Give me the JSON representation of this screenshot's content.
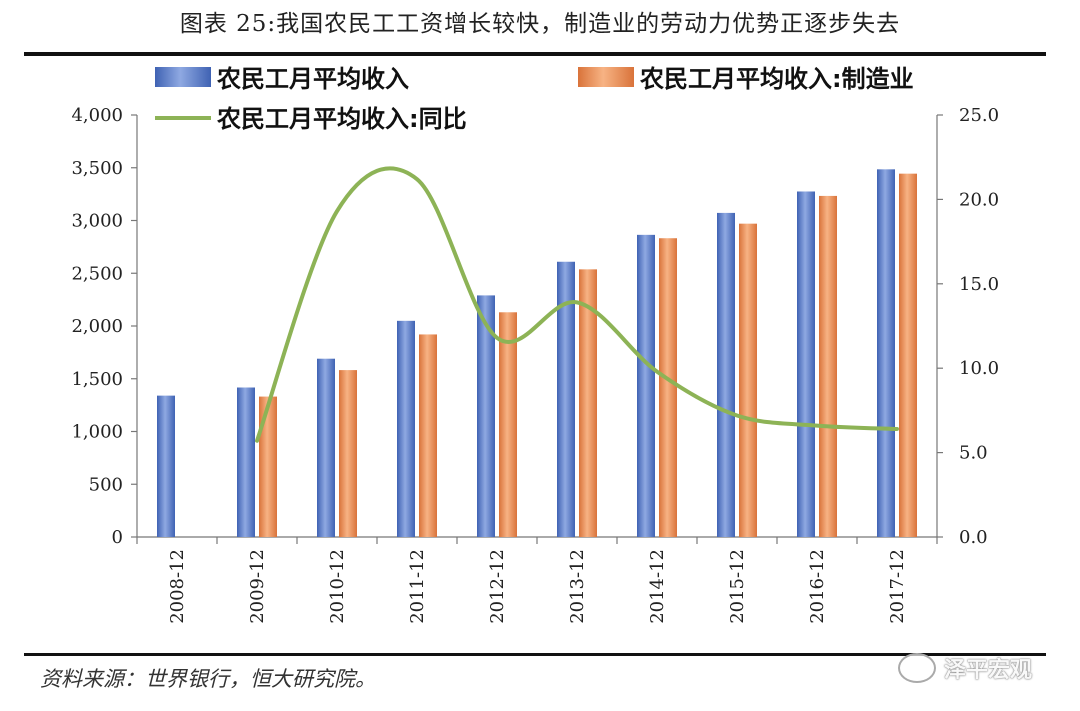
{
  "figure": {
    "title": "图表 25:我国农民工工资增长较快，制造业的劳动力优势正逐步失去",
    "source": "资料来源：世界银行，恒大研究院。",
    "watermark": "泽平宏观"
  },
  "chart_data": {
    "type": "bar",
    "categories": [
      "2008-12",
      "2009-12",
      "2010-12",
      "2011-12",
      "2012-12",
      "2013-12",
      "2014-12",
      "2015-12",
      "2016-12",
      "2017-12"
    ],
    "series": [
      {
        "name": "农民工月平均收入",
        "type": "bar",
        "axis": "left",
        "color": "#4f74c4",
        "values": [
          1340,
          1417,
          1690,
          2049,
          2290,
          2609,
          2864,
          3072,
          3275,
          3485
        ]
      },
      {
        "name": "农民工月平均收入:制造业",
        "type": "bar",
        "axis": "left",
        "color": "#ef8b4f",
        "values": [
          null,
          1331,
          1582,
          1920,
          2130,
          2537,
          2832,
          2970,
          3233,
          3444
        ]
      },
      {
        "name": "农民工月平均收入:同比",
        "type": "line",
        "axis": "right",
        "color": "#8db356",
        "values": [
          null,
          5.7,
          19.3,
          21.2,
          11.8,
          13.9,
          9.8,
          7.2,
          6.6,
          6.4
        ]
      }
    ],
    "y_left": {
      "min": 0,
      "max": 4000,
      "step": 500,
      "tick_labels": [
        "0",
        "500",
        "1,000",
        "1,500",
        "2,000",
        "2,500",
        "3,000",
        "3,500",
        "4,000"
      ]
    },
    "y_right": {
      "min": 0,
      "max": 25,
      "step": 5,
      "tick_labels": [
        "0.0",
        "5.0",
        "10.0",
        "15.0",
        "20.0",
        "25.0"
      ]
    },
    "grid": false,
    "legend": "top"
  }
}
